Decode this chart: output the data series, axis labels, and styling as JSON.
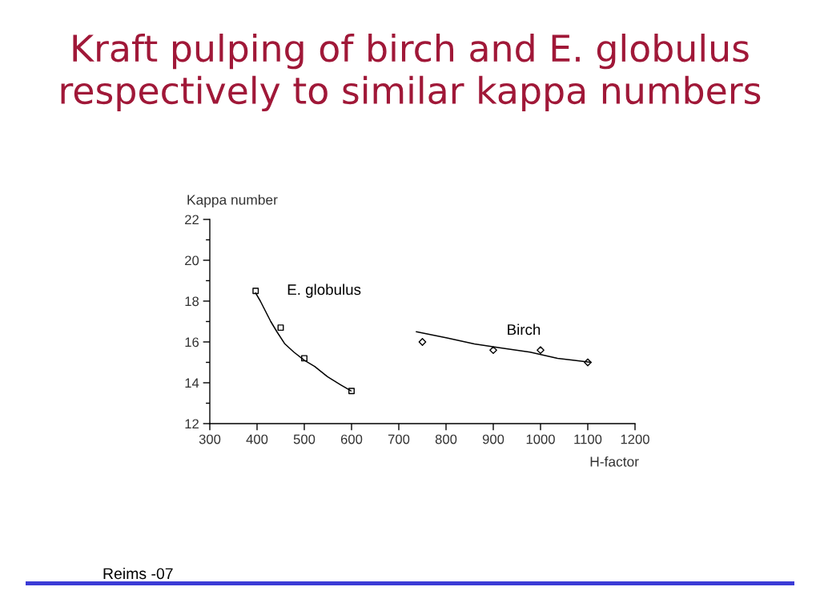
{
  "chart_data": {
    "type": "scatter",
    "title": "Kraft pulping of birch and E. globulus respectively to similar kappa numbers",
    "xlabel": "H-factor",
    "ylabel": "Kappa number",
    "annotations": [
      "Reims -07"
    ],
    "xlim": [
      300,
      1200
    ],
    "xticks": [
      300,
      400,
      500,
      600,
      700,
      800,
      900,
      1000,
      1100,
      1200
    ],
    "ylim": [
      12,
      22
    ],
    "yticks": [
      12,
      {
        "value": 13,
        "label": null
      },
      14,
      {
        "value": 15,
        "label": null
      },
      16,
      {
        "value": 17,
        "label": null
      },
      18,
      {
        "value": 19,
        "label": null
      },
      20,
      {
        "value": 21,
        "label": null
      },
      22
    ],
    "series": [
      {
        "name": "E. globulus",
        "marker": "square",
        "color": "#000000",
        "x": [
          397,
          450,
          500,
          600
        ],
        "values": [
          18.5,
          16.7,
          15.2,
          13.6
        ]
      },
      {
        "type": "line",
        "marker": "none",
        "color": "#000000",
        "x": [
          397,
          407,
          418,
          429,
          442,
          459,
          478,
          500,
          522,
          549,
          577,
          599
        ],
        "values": [
          18.4,
          18.0,
          17.5,
          17.0,
          16.5,
          15.9,
          15.5,
          15.1,
          14.8,
          14.3,
          13.9,
          13.6
        ]
      },
      {
        "name": "Birch",
        "marker": "diamond",
        "color": "#000000",
        "x": [
          750,
          900,
          1000,
          1100
        ],
        "values": [
          16.0,
          15.6,
          15.6,
          15.0
        ]
      },
      {
        "type": "line",
        "marker": "none",
        "color": "#000000",
        "x": [
          737,
          802,
          860,
          919,
          978,
          1036,
          1072,
          1107
        ],
        "values": [
          16.5,
          16.2,
          15.9,
          15.7,
          15.5,
          15.2,
          15.1,
          15.0
        ]
      }
    ]
  }
}
